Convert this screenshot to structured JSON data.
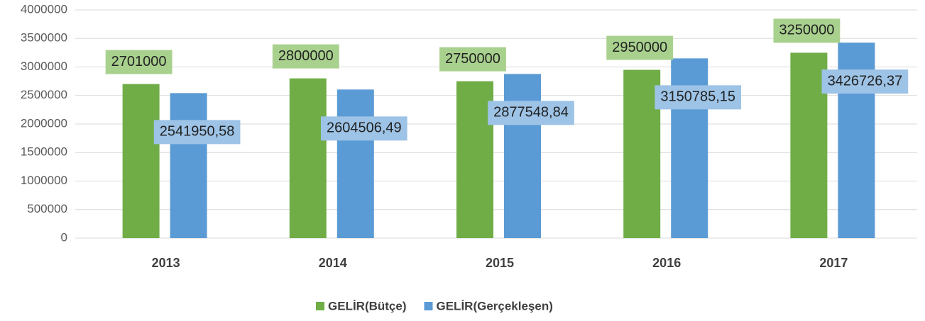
{
  "chart_data": {
    "type": "bar",
    "categories": [
      "2013",
      "2014",
      "2015",
      "2016",
      "2017"
    ],
    "series": [
      {
        "name": "GELİR(Bütçe)",
        "color": "#70ad47",
        "label_color": "#a9d18e",
        "values": [
          2701000,
          2800000,
          2750000,
          2950000,
          3250000
        ]
      },
      {
        "name": "GELİR(Gerçekleşen)",
        "color": "#5b9bd5",
        "label_color": "#9dc3e6",
        "values": [
          2541950.58,
          2604506.49,
          2877548.84,
          3150785.15,
          3426726.37
        ],
        "value_labels": [
          "2541950,58",
          "2604506,49",
          "2877548,84",
          "3150785,15",
          "3426726,37"
        ]
      }
    ],
    "ylim": [
      0,
      4000000
    ],
    "yticks": [
      0,
      500000,
      1000000,
      1500000,
      2000000,
      2500000,
      3000000,
      3500000,
      4000000
    ],
    "grid": true,
    "legend": "bottom"
  }
}
